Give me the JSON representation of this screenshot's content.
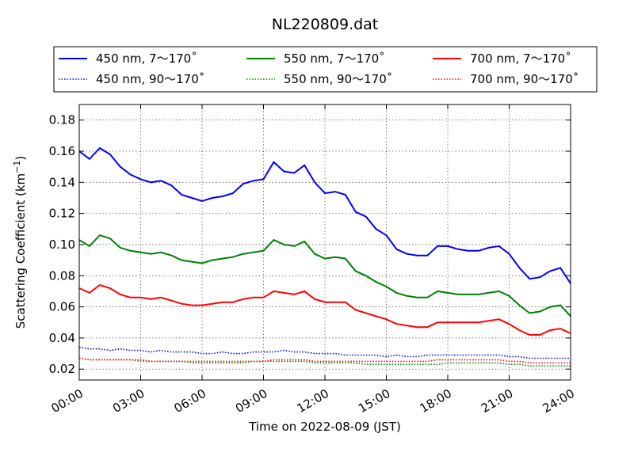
{
  "chart_data": {
    "type": "line",
    "title": "NL220809.dat",
    "xlabel": "Time on 2022-08-09 (JST)",
    "ylabel_main": "Scattering Coefficient (km",
    "ylabel_sup": "−1",
    "ylabel_close": ")",
    "xlim": [
      0,
      24
    ],
    "ylim": [
      0.013,
      0.19
    ],
    "grid": true,
    "legend_position": "top, outside plot",
    "x_ticks": [
      {
        "value": 0,
        "label": "00:00"
      },
      {
        "value": 3,
        "label": "03:00"
      },
      {
        "value": 6,
        "label": "06:00"
      },
      {
        "value": 9,
        "label": "09:00"
      },
      {
        "value": 12,
        "label": "12:00"
      },
      {
        "value": 15,
        "label": "15:00"
      },
      {
        "value": 18,
        "label": "18:00"
      },
      {
        "value": 21,
        "label": "21:00"
      },
      {
        "value": 24,
        "label": "24:00"
      }
    ],
    "y_ticks": [
      {
        "value": 0.02,
        "label": "0.02"
      },
      {
        "value": 0.04,
        "label": "0.04"
      },
      {
        "value": 0.06,
        "label": "0.06"
      },
      {
        "value": 0.08,
        "label": "0.08"
      },
      {
        "value": 0.1,
        "label": "0.10"
      },
      {
        "value": 0.12,
        "label": "0.12"
      },
      {
        "value": 0.14,
        "label": "0.14"
      },
      {
        "value": 0.16,
        "label": "0.16"
      },
      {
        "value": 0.18,
        "label": "0.18"
      }
    ],
    "x": [
      0,
      0.5,
      1,
      1.5,
      2,
      2.5,
      3,
      3.5,
      4,
      4.5,
      5,
      5.5,
      6,
      6.5,
      7,
      7.5,
      8,
      8.5,
      9,
      9.5,
      10,
      10.5,
      11,
      11.5,
      12,
      12.5,
      13,
      13.5,
      14,
      14.5,
      15,
      15.5,
      16,
      16.5,
      17,
      17.5,
      18,
      18.5,
      19,
      19.5,
      20,
      20.5,
      21,
      21.5,
      22,
      22.5,
      23,
      23.5,
      24
    ],
    "series": [
      {
        "name": "450 nm, 7～170˚",
        "color": "#0000ff",
        "style": "solid",
        "values": [
          0.16,
          0.155,
          0.162,
          0.158,
          0.15,
          0.145,
          0.142,
          0.14,
          0.141,
          0.138,
          0.132,
          0.13,
          0.128,
          0.13,
          0.131,
          0.133,
          0.139,
          0.141,
          0.142,
          0.153,
          0.147,
          0.146,
          0.151,
          0.14,
          0.133,
          0.134,
          0.132,
          0.121,
          0.118,
          0.11,
          0.106,
          0.097,
          0.094,
          0.093,
          0.093,
          0.099,
          0.099,
          0.097,
          0.096,
          0.096,
          0.098,
          0.099,
          0.094,
          0.085,
          0.078,
          0.079,
          0.083,
          0.085,
          0.075
        ]
      },
      {
        "name": "450 nm, 90～170˚",
        "color": "#0000ff",
        "style": "dotted",
        "values": [
          0.034,
          0.033,
          0.033,
          0.032,
          0.033,
          0.032,
          0.032,
          0.031,
          0.032,
          0.031,
          0.031,
          0.031,
          0.03,
          0.03,
          0.031,
          0.03,
          0.03,
          0.031,
          0.031,
          0.031,
          0.032,
          0.031,
          0.031,
          0.03,
          0.03,
          0.03,
          0.029,
          0.029,
          0.029,
          0.029,
          0.028,
          0.029,
          0.028,
          0.028,
          0.029,
          0.029,
          0.029,
          0.029,
          0.029,
          0.029,
          0.029,
          0.029,
          0.028,
          0.028,
          0.027,
          0.027,
          0.027,
          0.027,
          0.027
        ]
      },
      {
        "name": "550 nm, 7～170˚",
        "color": "#008000",
        "style": "solid",
        "values": [
          0.103,
          0.099,
          0.106,
          0.104,
          0.098,
          0.096,
          0.095,
          0.094,
          0.095,
          0.093,
          0.09,
          0.089,
          0.088,
          0.09,
          0.091,
          0.092,
          0.094,
          0.095,
          0.096,
          0.103,
          0.1,
          0.099,
          0.102,
          0.094,
          0.091,
          0.092,
          0.091,
          0.083,
          0.08,
          0.076,
          0.073,
          0.069,
          0.067,
          0.066,
          0.066,
          0.07,
          0.069,
          0.068,
          0.068,
          0.068,
          0.069,
          0.07,
          0.067,
          0.061,
          0.056,
          0.057,
          0.06,
          0.061,
          0.054
        ]
      },
      {
        "name": "550 nm, 90～170˚",
        "color": "#008000",
        "style": "dotted",
        "values": [
          0.027,
          0.026,
          0.026,
          0.026,
          0.026,
          0.026,
          0.025,
          0.025,
          0.025,
          0.025,
          0.025,
          0.024,
          0.024,
          0.024,
          0.024,
          0.024,
          0.024,
          0.025,
          0.025,
          0.025,
          0.025,
          0.025,
          0.025,
          0.024,
          0.024,
          0.024,
          0.024,
          0.024,
          0.023,
          0.023,
          0.023,
          0.023,
          0.023,
          0.023,
          0.023,
          0.023,
          0.024,
          0.024,
          0.024,
          0.024,
          0.024,
          0.024,
          0.023,
          0.023,
          0.022,
          0.022,
          0.022,
          0.022,
          0.022
        ]
      },
      {
        "name": "700 nm, 7～170˚",
        "color": "#ff0000",
        "style": "solid",
        "values": [
          0.072,
          0.069,
          0.074,
          0.072,
          0.068,
          0.066,
          0.066,
          0.065,
          0.066,
          0.064,
          0.062,
          0.061,
          0.061,
          0.062,
          0.063,
          0.063,
          0.065,
          0.066,
          0.066,
          0.07,
          0.069,
          0.068,
          0.07,
          0.065,
          0.063,
          0.063,
          0.063,
          0.058,
          0.056,
          0.054,
          0.052,
          0.049,
          0.048,
          0.047,
          0.047,
          0.05,
          0.05,
          0.05,
          0.05,
          0.05,
          0.051,
          0.052,
          0.049,
          0.045,
          0.042,
          0.042,
          0.045,
          0.046,
          0.043
        ]
      },
      {
        "name": "700 nm, 90～170˚",
        "color": "#ff0000",
        "style": "dotted",
        "values": [
          0.027,
          0.026,
          0.026,
          0.026,
          0.026,
          0.026,
          0.026,
          0.025,
          0.025,
          0.025,
          0.025,
          0.025,
          0.025,
          0.025,
          0.025,
          0.025,
          0.025,
          0.025,
          0.025,
          0.026,
          0.026,
          0.026,
          0.026,
          0.025,
          0.025,
          0.025,
          0.025,
          0.025,
          0.025,
          0.025,
          0.025,
          0.025,
          0.025,
          0.025,
          0.025,
          0.026,
          0.026,
          0.026,
          0.026,
          0.026,
          0.026,
          0.026,
          0.025,
          0.025,
          0.024,
          0.024,
          0.024,
          0.024,
          0.024
        ]
      }
    ]
  }
}
